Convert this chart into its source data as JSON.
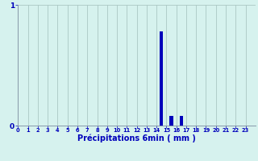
{
  "hours": [
    0,
    1,
    2,
    3,
    4,
    5,
    6,
    7,
    8,
    9,
    10,
    11,
    12,
    13,
    14,
    15,
    16,
    17,
    18,
    19,
    20,
    21,
    22,
    23
  ],
  "values": [
    0,
    0,
    0,
    0,
    0,
    0,
    0,
    0,
    0,
    0,
    0,
    0,
    0,
    0,
    0.78,
    0.08,
    0.08,
    0,
    0,
    0,
    0,
    0,
    0,
    0
  ],
  "bar_color": "#0000bb",
  "bg_color": "#d6f2ee",
  "grid_color": "#aac8c4",
  "spine_color": "#8899aa",
  "xlabel": "Précipitations 6min ( mm )",
  "xlabel_color": "#0000bb",
  "tick_label_color": "#0000bb",
  "ylim": [
    0,
    1
  ],
  "xlim": [
    0,
    24
  ],
  "yticks": [
    0,
    1
  ],
  "bar_width": 0.35
}
